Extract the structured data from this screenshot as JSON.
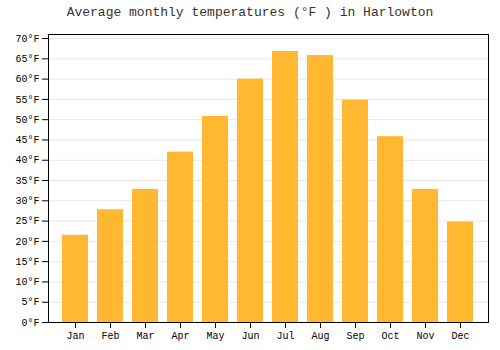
{
  "chart_data": {
    "type": "bar",
    "title": "Average monthly temperatures (°F ) in Harlowton",
    "categories": [
      "Jan",
      "Feb",
      "Mar",
      "Apr",
      "May",
      "Jun",
      "Jul",
      "Aug",
      "Sep",
      "Oct",
      "Nov",
      "Dec"
    ],
    "values": [
      21.5,
      27.8,
      32.8,
      42.0,
      50.8,
      60.0,
      66.8,
      65.8,
      54.8,
      45.8,
      32.8,
      24.8
    ],
    "color": "#FFB830",
    "ylim": [
      0,
      71
    ],
    "yticks": [
      {
        "value": 0,
        "label": "0°F"
      },
      {
        "value": 5,
        "label": "5°F"
      },
      {
        "value": 10,
        "label": "10°F"
      },
      {
        "value": 15,
        "label": "15°F"
      },
      {
        "value": 20,
        "label": "20°F"
      },
      {
        "value": 25,
        "label": "25°F"
      },
      {
        "value": 30,
        "label": "30°F"
      },
      {
        "value": 35,
        "label": "35°F"
      },
      {
        "value": 40,
        "label": "40°F"
      },
      {
        "value": 45,
        "label": "45°F"
      },
      {
        "value": 50,
        "label": "50°F"
      },
      {
        "value": 55,
        "label": "55°F"
      },
      {
        "value": 60,
        "label": "60°F"
      },
      {
        "value": 65,
        "label": "65°F"
      },
      {
        "value": 70,
        "label": "70°F"
      }
    ],
    "grid": true
  }
}
